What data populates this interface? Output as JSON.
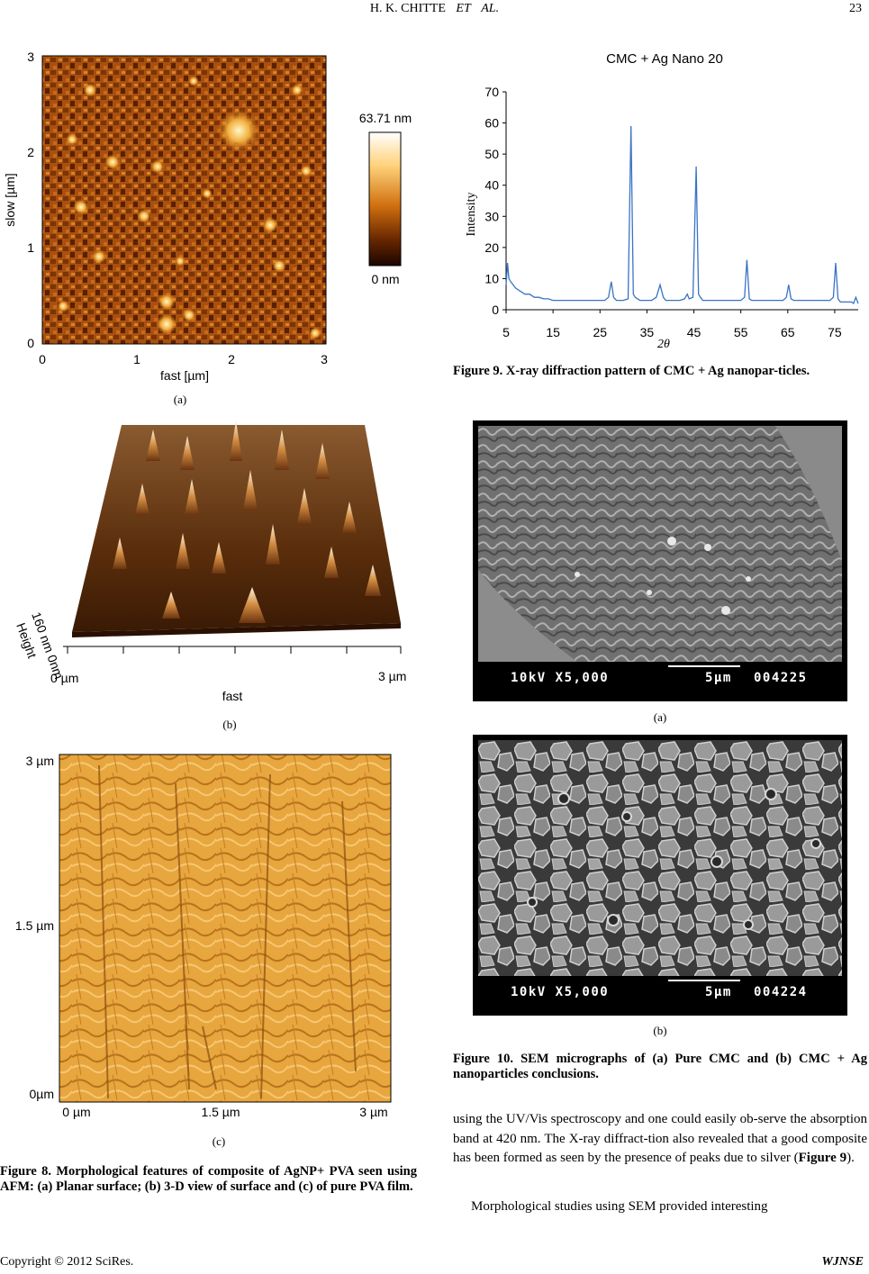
{
  "header": {
    "authors": "H. K. CHITTE",
    "et": "ET",
    "al": "AL.",
    "page_number": "23"
  },
  "figure8": {
    "a": {
      "y_axis_label": "slow [µm]",
      "x_axis_label": "fast [µm]",
      "y_ticks": [
        "3",
        "2",
        "1",
        "0"
      ],
      "x_ticks": [
        "0",
        "1",
        "2",
        "3"
      ],
      "colorbar_max": "63.71 nm",
      "colorbar_min": "0 nm",
      "label": "(a)"
    },
    "b": {
      "z_scale": "160 nm 0nm",
      "z_label": "Height",
      "x_start": "0 µm",
      "x_end": "3 µm",
      "x_label": "fast",
      "label": "(b)"
    },
    "c": {
      "y_ticks": [
        "3 µm",
        "1.5 µm",
        "0µm"
      ],
      "x_ticks": [
        "0 µm",
        "1.5 µm",
        "3 µm"
      ],
      "label": "(c)"
    },
    "caption": "Figure 8. Morphological features of composite of AgNP+ PVA seen using AFM: (a) Planar surface; (b) 3-D view of surface and (c) of pure PVA film."
  },
  "figure9": {
    "caption": "Figure 9. X-ray diffraction pattern of CMC + Ag nanopar-ticles."
  },
  "chart_data": {
    "type": "line",
    "title": "CMC + Ag Nano 20",
    "xlabel": "2θ",
    "ylabel": "Intensity",
    "xlim": [
      5,
      80
    ],
    "ylim": [
      0,
      70
    ],
    "x_ticks": [
      "5",
      "15",
      "25",
      "35",
      "45",
      "55",
      "65",
      "75"
    ],
    "y_ticks": [
      "0",
      "10",
      "20",
      "30",
      "40",
      "50",
      "60",
      "70"
    ],
    "line_color": "#3a73c4",
    "x": [
      5,
      5.3,
      5.6,
      6,
      7,
      8,
      9,
      10,
      11,
      12,
      13,
      14,
      15,
      16,
      17,
      18,
      19,
      20,
      21,
      22,
      23,
      24,
      25,
      26,
      26.8,
      27.4,
      27.9,
      28.5,
      29,
      30,
      31,
      31.6,
      32.1,
      32.5,
      33,
      33.5,
      34,
      35,
      36,
      37,
      37.8,
      38.5,
      39,
      40,
      41,
      42,
      43,
      43.6,
      44,
      44.8,
      45.5,
      46,
      46.4,
      46.9,
      47.4,
      48,
      49,
      50,
      51,
      52,
      53,
      54,
      55,
      55.8,
      56.3,
      56.8,
      57.3,
      58,
      59,
      60,
      61,
      62,
      63,
      64,
      64.7,
      65.2,
      65.7,
      66.3,
      67,
      68,
      69,
      70,
      71,
      72,
      73,
      74,
      74.7,
      75.2,
      75.7,
      76.2,
      77,
      78,
      78.6,
      79,
      79.5,
      80
    ],
    "y": [
      8,
      15,
      10,
      9,
      7,
      6,
      5,
      5,
      4,
      4,
      3.5,
      3.5,
      3,
      3,
      3,
      3,
      3,
      3,
      3,
      3,
      3,
      3,
      3,
      3,
      4,
      9,
      4,
      3,
      3,
      3,
      3.5,
      59,
      5,
      4,
      3.5,
      3,
      3,
      3,
      3,
      4,
      8,
      4,
      3,
      3,
      3,
      3,
      3.5,
      5,
      3.5,
      4,
      46,
      5,
      4,
      3,
      3,
      3,
      3,
      3,
      3,
      3,
      3,
      3,
      3,
      4,
      16,
      3.5,
      3,
      3,
      3,
      3,
      3,
      3,
      3,
      3,
      4,
      8,
      3.5,
      3,
      3,
      3,
      3,
      3,
      3,
      3,
      3,
      3,
      4,
      15,
      3.5,
      2.5,
      2.5,
      2.5,
      2.5,
      2,
      4,
      2
    ]
  },
  "figure10": {
    "a": {
      "info_left": "10kV X5,000",
      "info_scale": "5µm",
      "info_id": "004225",
      "label": "(a)"
    },
    "b": {
      "info_left": "10kV X5,000",
      "info_scale": "5µm",
      "info_id": "004224",
      "label": "(b)"
    },
    "caption": "Figure 10. SEM micrographs of (a) Pure CMC and (b) CMC + Ag nanoparticles conclusions."
  },
  "body": {
    "para1_prefix": "using the UV/Vis spectroscopy and one could easily ob-serve the absorption band at 420 nm. The X-ray diffract-tion also revealed that a good composite has been formed as seen by the presence of peaks due to silver (",
    "para1_ref": "Figure 9",
    "para1_suffix": ").",
    "para2": "Morphological studies using SEM provided interesting"
  },
  "footer": {
    "copyright": "Copyright © 2012 SciRes.",
    "journal": "WJNSE"
  }
}
